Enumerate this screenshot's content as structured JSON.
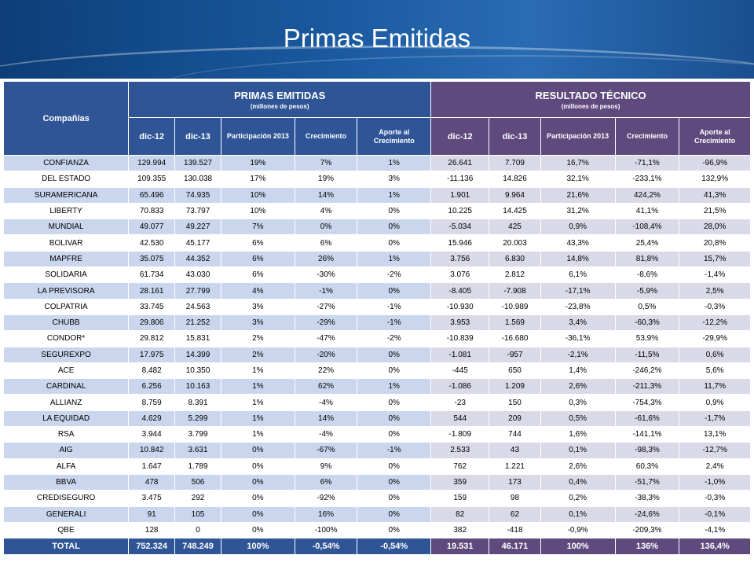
{
  "title": "Primas Emitidas",
  "headers": {
    "company": "Compañías",
    "primas_title": "PRIMAS EMITIDAS",
    "primas_sub": "(millones de pesos)",
    "resultado_title": "RESULTADO TÉCNICO",
    "resultado_sub": "(millones de pesos)",
    "cols": [
      "dic-12",
      "dic-13",
      "Participación 2013",
      "Crecimiento",
      "Aporte al Crecimiento",
      "dic-12",
      "dic-13",
      "Participación 2013",
      "Crecimiento",
      "Aporte al Crecimiento"
    ]
  },
  "rows": [
    [
      "CONFIANZA",
      "129.994",
      "139.527",
      "19%",
      "7%",
      "1%",
      "26.641",
      "7.709",
      "16,7%",
      "-71,1%",
      "-96,9%"
    ],
    [
      "DEL ESTADO",
      "109.355",
      "130.038",
      "17%",
      "19%",
      "3%",
      "-11.136",
      "14.826",
      "32,1%",
      "-233,1%",
      "132,9%"
    ],
    [
      "SURAMERICANA",
      "65.496",
      "74.935",
      "10%",
      "14%",
      "1%",
      "1.901",
      "9.964",
      "21,6%",
      "424,2%",
      "41,3%"
    ],
    [
      "LIBERTY",
      "70.833",
      "73.797",
      "10%",
      "4%",
      "0%",
      "10.225",
      "14.425",
      "31,2%",
      "41,1%",
      "21,5%"
    ],
    [
      "MUNDIAL",
      "49.077",
      "49.227",
      "7%",
      "0%",
      "0%",
      "-5.034",
      "425",
      "0,9%",
      "-108,4%",
      "28,0%"
    ],
    [
      "BOLIVAR",
      "42.530",
      "45.177",
      "6%",
      "6%",
      "0%",
      "15.946",
      "20.003",
      "43,3%",
      "25,4%",
      "20,8%"
    ],
    [
      "MAPFRE",
      "35.075",
      "44.352",
      "6%",
      "26%",
      "1%",
      "3.756",
      "6.830",
      "14,8%",
      "81,8%",
      "15,7%"
    ],
    [
      "SOLIDARIA",
      "61.734",
      "43.030",
      "6%",
      "-30%",
      "-2%",
      "3.076",
      "2.812",
      "6,1%",
      "-8,6%",
      "-1,4%"
    ],
    [
      "LA PREVISORA",
      "28.161",
      "27.799",
      "4%",
      "-1%",
      "0%",
      "-8.405",
      "-7.908",
      "-17,1%",
      "-5,9%",
      "2,5%"
    ],
    [
      "COLPATRIA",
      "33.745",
      "24.563",
      "3%",
      "-27%",
      "-1%",
      "-10.930",
      "-10.989",
      "-23,8%",
      "0,5%",
      "-0,3%"
    ],
    [
      "CHUBB",
      "29.806",
      "21.252",
      "3%",
      "-29%",
      "-1%",
      "3.953",
      "1.569",
      "3,4%",
      "-60,3%",
      "-12,2%"
    ],
    [
      "CONDOR*",
      "29.812",
      "15.831",
      "2%",
      "-47%",
      "-2%",
      "-10.839",
      "-16.680",
      "-36,1%",
      "53,9%",
      "-29,9%"
    ],
    [
      "SEGUREXPO",
      "17.975",
      "14.399",
      "2%",
      "-20%",
      "0%",
      "-1.081",
      "-957",
      "-2,1%",
      "-11,5%",
      "0,6%"
    ],
    [
      "ACE",
      "8.482",
      "10.350",
      "1%",
      "22%",
      "0%",
      "-445",
      "650",
      "1,4%",
      "-246,2%",
      "5,6%"
    ],
    [
      "CARDINAL",
      "6.256",
      "10.163",
      "1%",
      "62%",
      "1%",
      "-1.086",
      "1.209",
      "2,6%",
      "-211,3%",
      "11,7%"
    ],
    [
      "ALLIANZ",
      "8.759",
      "8.391",
      "1%",
      "-4%",
      "0%",
      "-23",
      "150",
      "0,3%",
      "-754,3%",
      "0,9%"
    ],
    [
      "LA EQUIDAD",
      "4.629",
      "5.299",
      "1%",
      "14%",
      "0%",
      "544",
      "209",
      "0,5%",
      "-61,6%",
      "-1,7%"
    ],
    [
      "RSA",
      "3.944",
      "3.799",
      "1%",
      "-4%",
      "0%",
      "-1.809",
      "744",
      "1,6%",
      "-141,1%",
      "13,1%"
    ],
    [
      "AIG",
      "10.842",
      "3.631",
      "0%",
      "-67%",
      "-1%",
      "2.533",
      "43",
      "0,1%",
      "-98,3%",
      "-12,7%"
    ],
    [
      "ALFA",
      "1.647",
      "1.789",
      "0%",
      "9%",
      "0%",
      "762",
      "1.221",
      "2,6%",
      "60,3%",
      "2,4%"
    ],
    [
      "BBVA",
      "478",
      "506",
      "0%",
      "6%",
      "0%",
      "359",
      "173",
      "0,4%",
      "-51,7%",
      "-1,0%"
    ],
    [
      "CREDISEGURO",
      "3.475",
      "292",
      "0%",
      "-92%",
      "0%",
      "159",
      "98",
      "0,2%",
      "-38,3%",
      "-0,3%"
    ],
    [
      "GENERALI",
      "91",
      "105",
      "0%",
      "16%",
      "0%",
      "82",
      "62",
      "0,1%",
      "-24,6%",
      "-0,1%"
    ],
    [
      "QBE",
      "128",
      "0",
      "0%",
      "-100%",
      "0%",
      "382",
      "-418",
      "-0,9%",
      "-209,3%",
      "-4,1%"
    ]
  ],
  "total": [
    "TOTAL",
    "752.324",
    "748.249",
    "100%",
    "-0,54%",
    "-0,54%",
    "19.531",
    "46.171",
    "100%",
    "136%",
    "136,4%"
  ]
}
